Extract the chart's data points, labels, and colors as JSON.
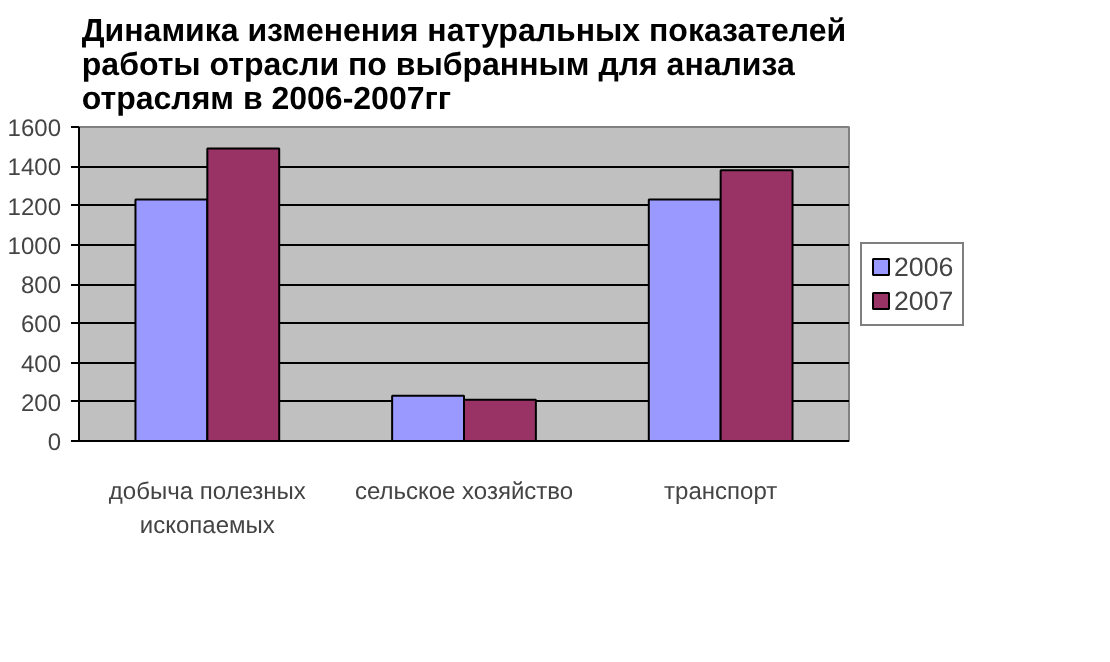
{
  "chart_data": {
    "type": "bar",
    "title": "Динамика изменения натуральных показателей работы отрасли по выбранным для анализа отраслям в 2006-2007гг",
    "categories": [
      "добыча полезных ископаемых",
      "сельское хозяйство",
      "транспорт"
    ],
    "series": [
      {
        "name": "2006",
        "color": "#9999ff",
        "values": [
          1230,
          230,
          1230
        ]
      },
      {
        "name": "2007",
        "color": "#993366",
        "values": [
          1490,
          210,
          1380
        ]
      }
    ],
    "ylim": [
      0,
      1600
    ],
    "yticks": [
      0,
      200,
      400,
      600,
      800,
      1000,
      1200,
      1400,
      1600
    ],
    "grid": "y",
    "legend": "right"
  }
}
